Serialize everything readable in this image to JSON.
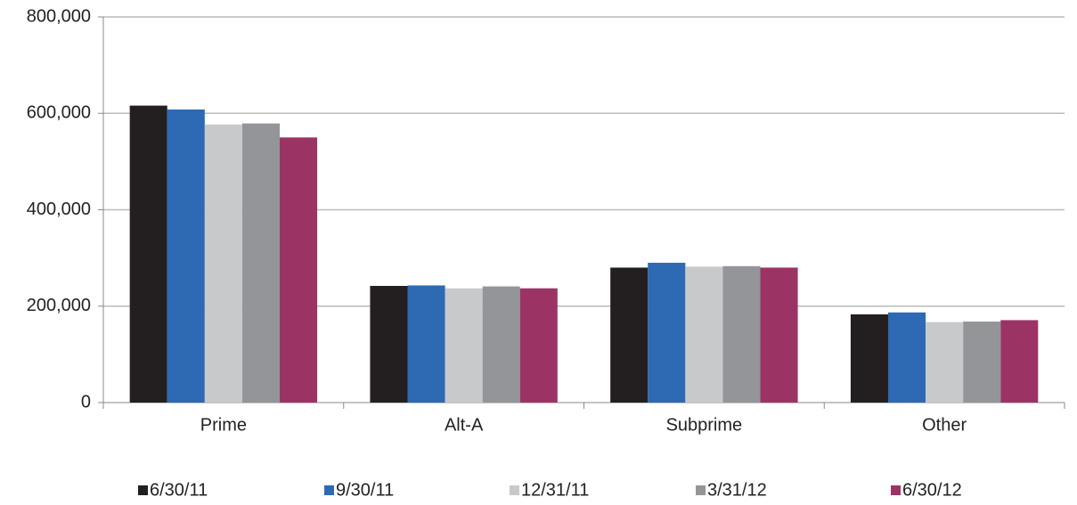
{
  "chart_data": {
    "type": "bar",
    "categories": [
      "Prime",
      "Alt-A",
      "Subprime",
      "Other"
    ],
    "series": [
      {
        "name": "6/30/11",
        "color": "#231f20",
        "values": [
          616000,
          242000,
          280000,
          183000
        ]
      },
      {
        "name": "9/30/11",
        "color": "#2e69b3",
        "values": [
          608000,
          243000,
          290000,
          187000
        ]
      },
      {
        "name": "12/31/11",
        "color": "#c8c9cb",
        "values": [
          577000,
          237000,
          282000,
          167000
        ]
      },
      {
        "name": "3/31/12",
        "color": "#939598",
        "values": [
          579000,
          241000,
          283000,
          168000
        ]
      },
      {
        "name": "6/30/12",
        "color": "#9b3465",
        "values": [
          550000,
          237000,
          280000,
          171000
        ]
      }
    ],
    "ylim": [
      0,
      800000
    ],
    "yticks": [
      0,
      {
        "value": 200000,
        "label": "200,000"
      },
      {
        "value": 400000,
        "label": "400,000"
      },
      {
        "value": 600000,
        "label": "600,000"
      },
      {
        "value": 800000,
        "label": "800,000"
      }
    ],
    "grid": true,
    "legend": "bottom"
  }
}
